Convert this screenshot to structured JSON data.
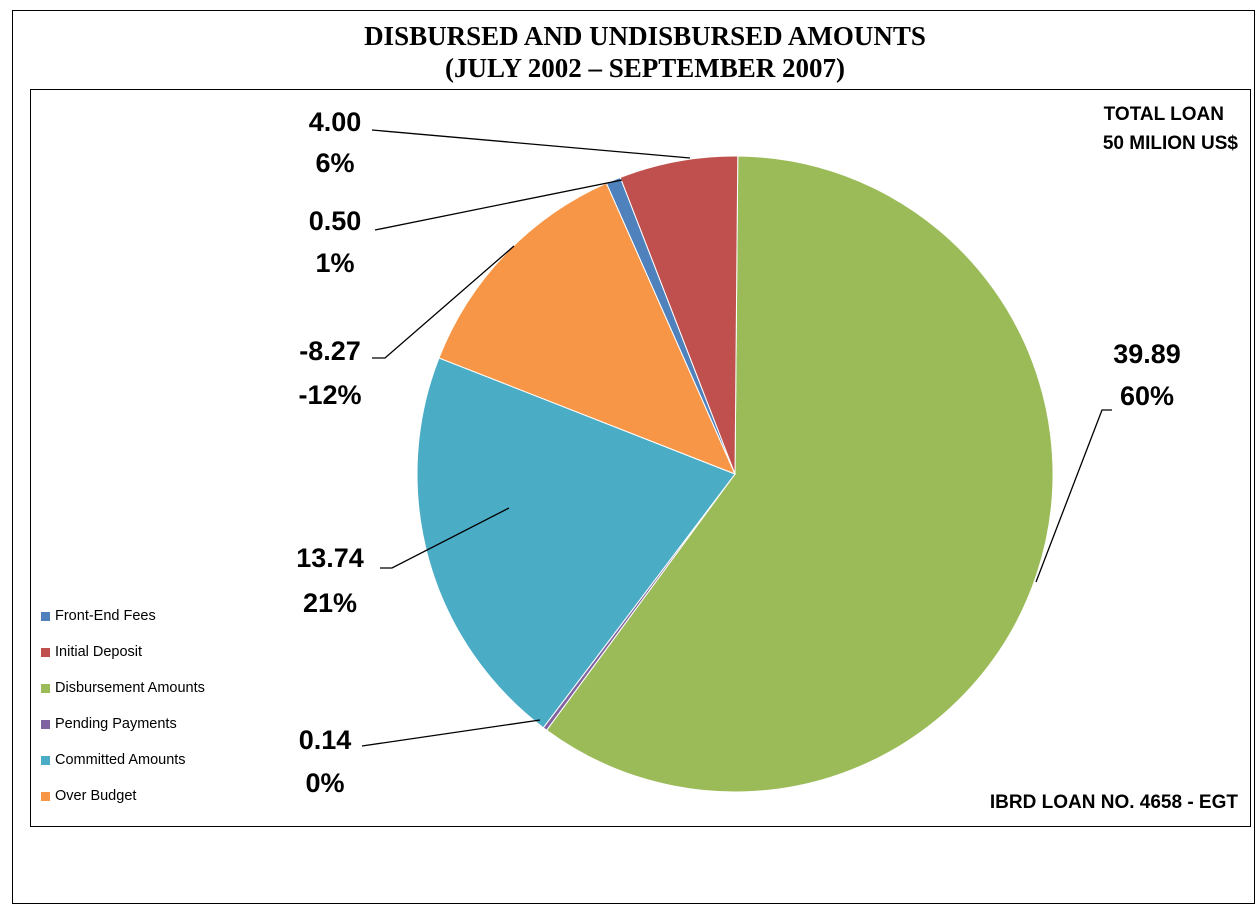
{
  "chart_data": {
    "type": "pie",
    "title": "DISBURSED AND UNDISBURSED AMOUNTS",
    "subtitle": "(JULY 2002 – SEPTEMBER 2007)",
    "note_top_right": [
      "TOTAL LOAN",
      "50 MILION US$"
    ],
    "note_bottom_right": "IBRD LOAN NO. 4658 - EGT",
    "legend_position": "left",
    "slices": [
      {
        "name": "Front-End Fees",
        "value": 0.5,
        "value_label": "0.50",
        "percent_label": "1%",
        "color": "#4f81bd"
      },
      {
        "name": "Initial Deposit",
        "value": 4.0,
        "value_label": "4.00",
        "percent_label": "6%",
        "color": "#c0504d"
      },
      {
        "name": "Disbursement Amounts",
        "value": 39.89,
        "value_label": "39.89",
        "percent_label": "60%",
        "color": "#9bbb59"
      },
      {
        "name": "Pending Payments",
        "value": 0.14,
        "value_label": "0.14",
        "percent_label": "0%",
        "color": "#8064a2"
      },
      {
        "name": "Committed Amounts",
        "value": 13.74,
        "value_label": "13.74",
        "percent_label": "21%",
        "color": "#4bacc6"
      },
      {
        "name": "Over Budget",
        "value": -8.27,
        "value_label": "-8.27",
        "percent_label": "-12%",
        "color": "#f79646"
      }
    ]
  }
}
